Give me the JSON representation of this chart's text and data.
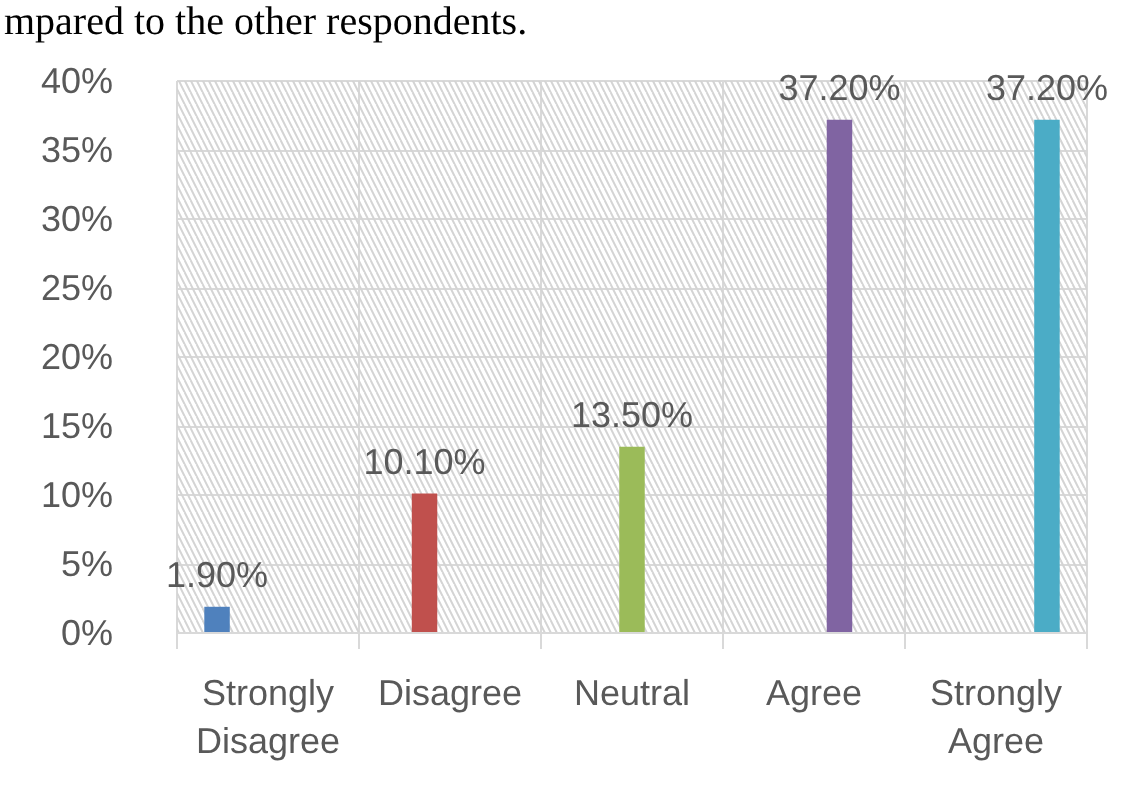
{
  "chart_data": {
    "type": "bar",
    "annotations": [
      "mpared to the other respondents."
    ],
    "categories": [
      "Strongly Disagree",
      "Disagree",
      "Neutral",
      "Agree",
      "Strongly Agree"
    ],
    "series": [
      {
        "color": "#4f81bd",
        "values": [
          1.9,
          null,
          null,
          null,
          null
        ],
        "value_labels": [
          "1.90%",
          null,
          null,
          null,
          null
        ]
      },
      {
        "color": "#c0504d",
        "values": [
          null,
          10.1,
          null,
          null,
          null
        ],
        "value_labels": [
          null,
          "10.10%",
          null,
          null,
          null
        ]
      },
      {
        "color": "#9bbb59",
        "values": [
          null,
          null,
          13.5,
          null,
          null
        ],
        "value_labels": [
          null,
          null,
          "13.50%",
          null,
          null
        ]
      },
      {
        "color": "#8064a2",
        "values": [
          null,
          null,
          null,
          37.2,
          null
        ],
        "value_labels": [
          null,
          null,
          null,
          "37.20%",
          null
        ]
      },
      {
        "color": "#4bacc6",
        "values": [
          null,
          null,
          null,
          null,
          37.2
        ],
        "value_labels": [
          null,
          null,
          null,
          null,
          "37.20%"
        ]
      }
    ],
    "ylim": [
      0,
      40
    ],
    "yticks": [
      {
        "value": 0,
        "label": "0%"
      },
      {
        "value": 5,
        "label": "5%"
      },
      {
        "value": 10,
        "label": "10%"
      },
      {
        "value": 15,
        "label": "15%"
      },
      {
        "value": 20,
        "label": "20%"
      },
      {
        "value": 25,
        "label": "25%"
      },
      {
        "value": 30,
        "label": "30%"
      },
      {
        "value": 35,
        "label": "35%"
      },
      {
        "value": 40,
        "label": "40%"
      }
    ],
    "grid": true
  }
}
